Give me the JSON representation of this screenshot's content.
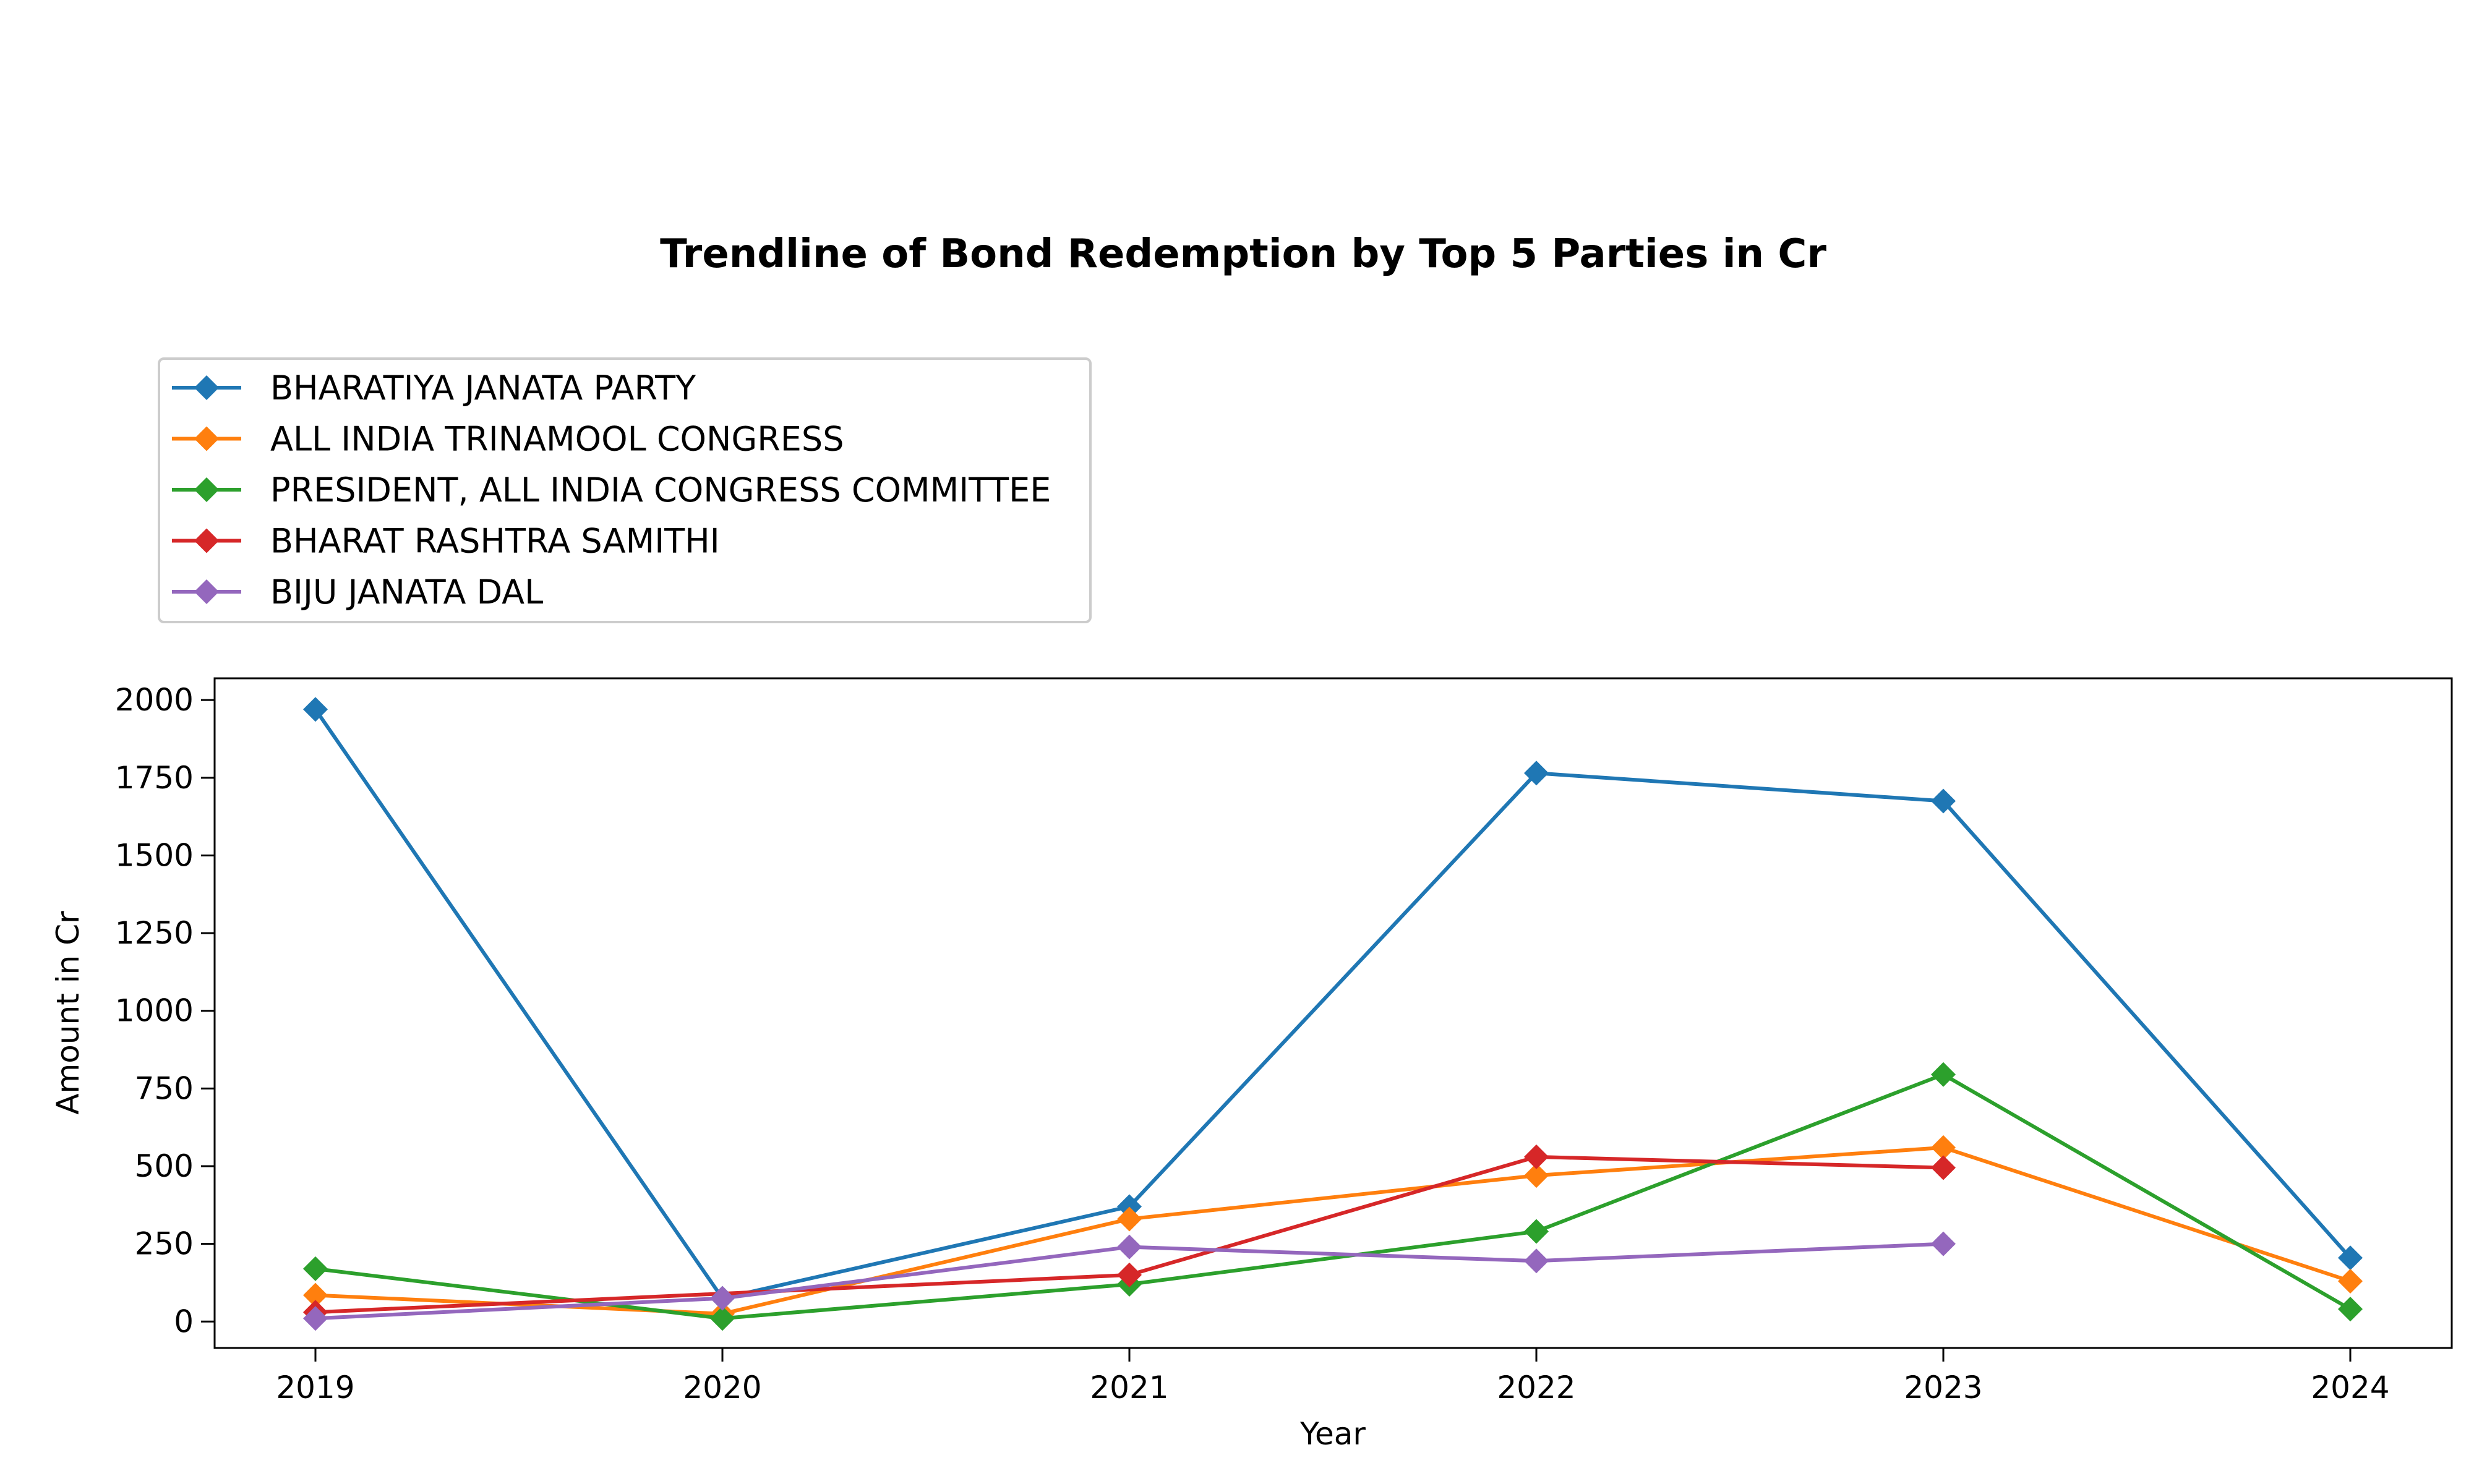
{
  "chart_data": {
    "type": "line",
    "title": "Trendline of Bond Redemption by Top 5 Parties in Cr",
    "xlabel": "Year",
    "ylabel": "Amount in Cr",
    "categories": [
      "2019",
      "2020",
      "2021",
      "2022",
      "2023",
      "2024"
    ],
    "yticks": [
      0,
      250,
      500,
      750,
      1000,
      1250,
      1500,
      1750,
      2000
    ],
    "ylim": [
      -85,
      2070
    ],
    "grid": false,
    "legend_position": "top-left, above plot",
    "marker": "diamond",
    "series": [
      {
        "name": "BHARATIYA JANATA PARTY",
        "color": "#1f77b4",
        "values": [
          1970,
          75,
          370,
          1765,
          1675,
          205
        ]
      },
      {
        "name": "ALL INDIA TRINAMOOL CONGRESS",
        "color": "#ff7f0e",
        "values": [
          85,
          25,
          330,
          470,
          560,
          130
        ]
      },
      {
        "name": "PRESIDENT, ALL INDIA CONGRESS COMMITTEE",
        "color": "#2ca02c",
        "values": [
          170,
          10,
          120,
          290,
          795,
          40
        ]
      },
      {
        "name": "BHARAT RASHTRA SAMITHI",
        "color": "#d62728",
        "values": [
          30,
          null,
          150,
          530,
          495,
          null
        ]
      },
      {
        "name": "BIJU JANATA DAL",
        "color": "#9467bd",
        "values": [
          10,
          75,
          240,
          195,
          250,
          null
        ]
      }
    ]
  }
}
